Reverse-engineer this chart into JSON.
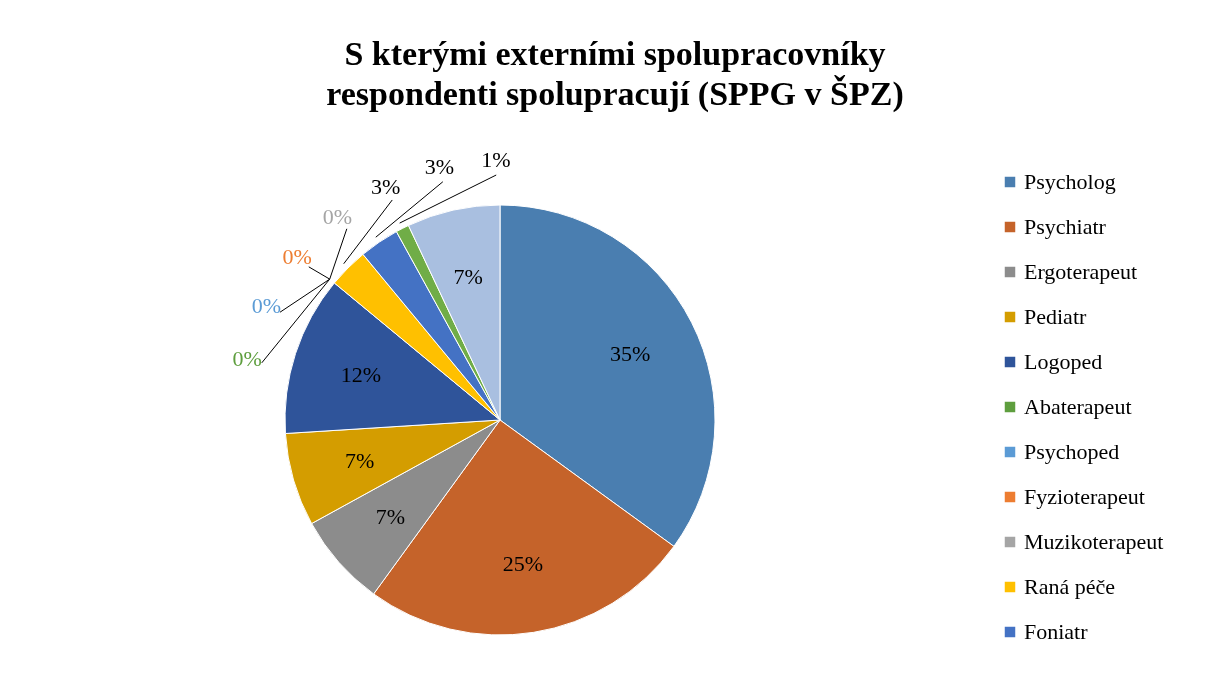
{
  "chart_data": {
    "type": "pie",
    "title": "S kterými externími spolupracovníky respondenti spolupracují (SPPG v ŠPZ)",
    "categories": [
      "Psycholog",
      "Psychiatr",
      "Ergoterapeut",
      "Pediatr",
      "Logoped",
      "Abaterapeut",
      "Psychoped",
      "Fyzioterapeut",
      "Muzikoterapeut",
      "Raná péče",
      "Foniatr",
      null,
      null
    ],
    "values": [
      35,
      25,
      7,
      7,
      12,
      0,
      0,
      0,
      0,
      3,
      3,
      1,
      7
    ],
    "value_labels": [
      "35%",
      "25%",
      "7%",
      "7%",
      "12%",
      "0%",
      "0%",
      "0%",
      "0%",
      "3%",
      "3%",
      "1%",
      "7%"
    ],
    "colors": [
      "#4a7eb0",
      "#c5632a",
      "#8c8c8c",
      "#d49d00",
      "#2f549a",
      "#5e9e3e",
      "#5b9bd5",
      "#ed7d31",
      "#a5a5a5",
      "#ffc000",
      "#4472c4",
      "#70ad47",
      "#a9bfe0"
    ],
    "legend": "right"
  }
}
